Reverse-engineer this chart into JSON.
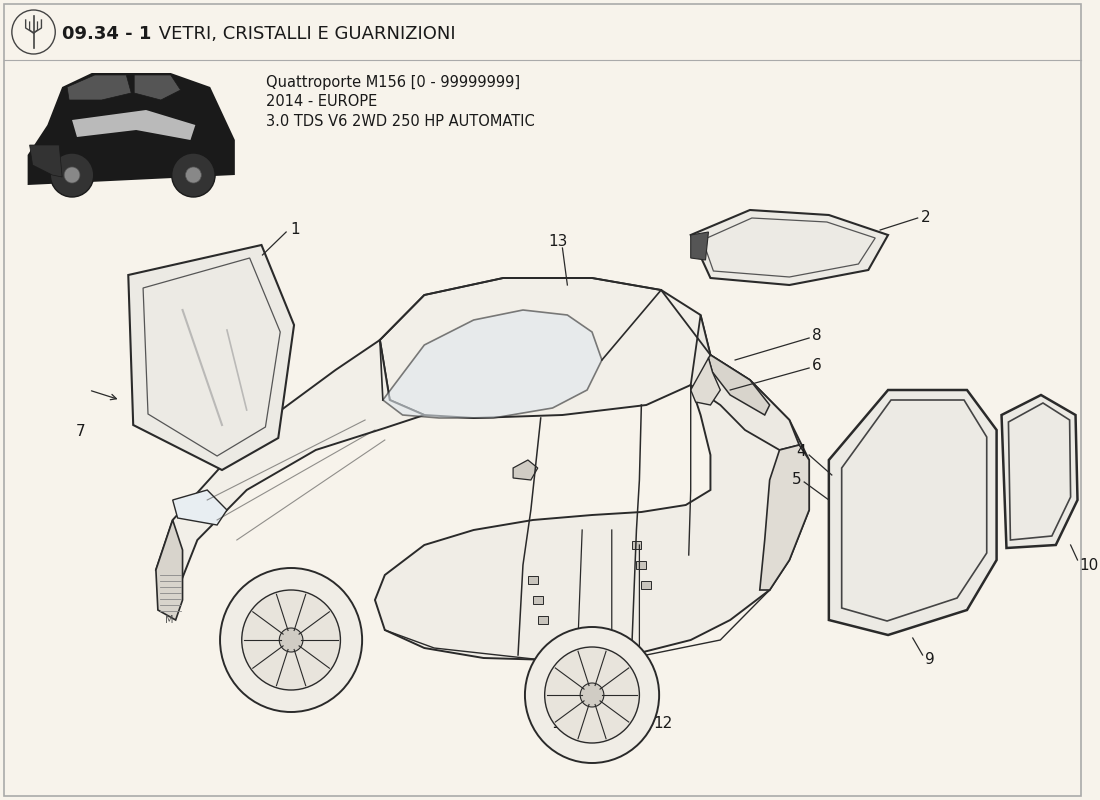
{
  "title_bold": "09.34 - 1",
  "title_normal": " VETRI, CRISTALLI E GUARNIZIONI",
  "subtitle_lines": [
    "Quattroporte M156 [0 - 99999999]",
    "2014 - EUROPE",
    "3.0 TDS V6 2WD 250 HP AUTOMATIC"
  ],
  "bg_color": "#f7f3eb",
  "line_color": "#2a2a2a",
  "text_color": "#1a1a1a",
  "light_fill": "#f0ede6",
  "mid_fill": "#e8e4dc",
  "dark_fill": "#c8c4bc"
}
